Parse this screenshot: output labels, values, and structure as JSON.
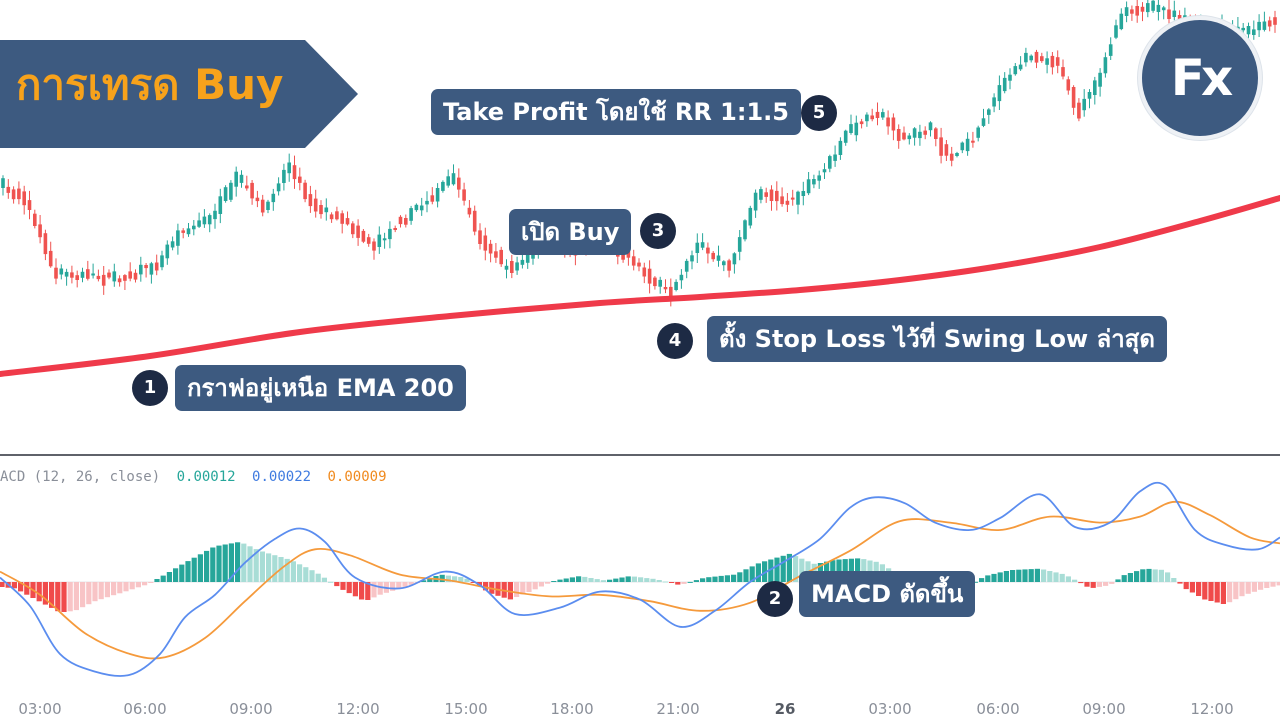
{
  "banner": {
    "title": "การเทรด Buy"
  },
  "logo": {
    "text": "Fx"
  },
  "annotations": [
    {
      "step": "1",
      "text": "กราฟอยู่เหนือ EMA 200"
    },
    {
      "step": "2",
      "text": "MACD ตัดขึ้น"
    },
    {
      "step": "3",
      "text": "เปิด Buy"
    },
    {
      "step": "4",
      "text": "ตั้ง Stop Loss ไว้ที่ Swing Low ล่าสุด"
    },
    {
      "step": "5",
      "text": "Take Profit โดยใช้ RR 1:1.5"
    }
  ],
  "macd_legend": {
    "label": "ACD (12, 26, close)",
    "macd": "0.00012",
    "signal": "0.00022",
    "histogram": "0.00009"
  },
  "colors": {
    "banner_bg": "#3d5a80",
    "banner_text": "#f7a21b",
    "label_bg": "#3d5a80",
    "badge_bg": "#1d2a44",
    "candle_up": "#26a69a",
    "candle_down": "#ef5350",
    "ema": "#ef3a4a",
    "macd_line": "#5b8def",
    "signal_line": "#f59a3c",
    "hist_up_strong": "#26a69a",
    "hist_up_weak": "#a8ddd6",
    "hist_down_strong": "#f04b4b",
    "hist_down_weak": "#f8c4c6",
    "legend_teal": "#26a69a",
    "legend_blue": "#3f7be0",
    "legend_orange": "#f08a1e"
  },
  "chart_data": {
    "type": "candlestick",
    "x_ticks": [
      "03:00",
      "06:00",
      "09:00",
      "12:00",
      "15:00",
      "18:00",
      "21:00",
      "26",
      "03:00",
      "06:00",
      "09:00",
      "12:00"
    ],
    "x_ticks_bold": [
      "26"
    ],
    "price_path": [
      {
        "t": 0,
        "p": 182
      },
      {
        "t": 30,
        "p": 205
      },
      {
        "t": 55,
        "p": 272
      },
      {
        "t": 100,
        "p": 278
      },
      {
        "t": 130,
        "p": 278
      },
      {
        "t": 160,
        "p": 262
      },
      {
        "t": 180,
        "p": 232
      },
      {
        "t": 210,
        "p": 220
      },
      {
        "t": 240,
        "p": 175
      },
      {
        "t": 265,
        "p": 212
      },
      {
        "t": 290,
        "p": 165
      },
      {
        "t": 315,
        "p": 205
      },
      {
        "t": 350,
        "p": 225
      },
      {
        "t": 375,
        "p": 245
      },
      {
        "t": 410,
        "p": 215
      },
      {
        "t": 440,
        "p": 192
      },
      {
        "t": 455,
        "p": 175
      },
      {
        "t": 480,
        "p": 235
      },
      {
        "t": 510,
        "p": 270
      },
      {
        "t": 545,
        "p": 245
      },
      {
        "t": 575,
        "p": 250
      },
      {
        "t": 610,
        "p": 240
      },
      {
        "t": 640,
        "p": 268
      },
      {
        "t": 672,
        "p": 296
      },
      {
        "t": 700,
        "p": 245
      },
      {
        "t": 730,
        "p": 268
      },
      {
        "t": 760,
        "p": 192
      },
      {
        "t": 790,
        "p": 202
      },
      {
        "t": 820,
        "p": 178
      },
      {
        "t": 850,
        "p": 132
      },
      {
        "t": 880,
        "p": 112
      },
      {
        "t": 905,
        "p": 140
      },
      {
        "t": 930,
        "p": 128
      },
      {
        "t": 950,
        "p": 158
      },
      {
        "t": 975,
        "p": 138
      },
      {
        "t": 1000,
        "p": 90
      },
      {
        "t": 1030,
        "p": 55
      },
      {
        "t": 1060,
        "p": 62
      },
      {
        "t": 1080,
        "p": 112
      },
      {
        "t": 1100,
        "p": 78
      },
      {
        "t": 1125,
        "p": 10
      },
      {
        "t": 1160,
        "p": 8
      },
      {
        "t": 1190,
        "p": 20
      },
      {
        "t": 1220,
        "p": 30
      },
      {
        "t": 1250,
        "p": 32
      },
      {
        "t": 1280,
        "p": 18
      }
    ],
    "ema200": [
      {
        "t": 0,
        "p": 374
      },
      {
        "t": 150,
        "p": 356
      },
      {
        "t": 300,
        "p": 332
      },
      {
        "t": 450,
        "p": 316
      },
      {
        "t": 600,
        "p": 303
      },
      {
        "t": 700,
        "p": 297
      },
      {
        "t": 800,
        "p": 290
      },
      {
        "t": 900,
        "p": 280
      },
      {
        "t": 1000,
        "p": 266
      },
      {
        "t": 1100,
        "p": 247
      },
      {
        "t": 1200,
        "p": 221
      },
      {
        "t": 1280,
        "p": 198
      }
    ],
    "macd_line": [
      {
        "t": 0,
        "v": 0.3
      },
      {
        "t": 30,
        "v": -1.5
      },
      {
        "t": 60,
        "v": -4.5
      },
      {
        "t": 95,
        "v": -5.6
      },
      {
        "t": 130,
        "v": -5.8
      },
      {
        "t": 160,
        "v": -4.5
      },
      {
        "t": 185,
        "v": -2.2
      },
      {
        "t": 215,
        "v": -0.8
      },
      {
        "t": 245,
        "v": 1.3
      },
      {
        "t": 275,
        "v": 2.9
      },
      {
        "t": 300,
        "v": 3.6
      },
      {
        "t": 325,
        "v": 2.7
      },
      {
        "t": 355,
        "v": 0.3
      },
      {
        "t": 400,
        "v": -0.4
      },
      {
        "t": 445,
        "v": 0.7
      },
      {
        "t": 480,
        "v": -0.2
      },
      {
        "t": 515,
        "v": -2.0
      },
      {
        "t": 560,
        "v": -1.6
      },
      {
        "t": 600,
        "v": -0.6
      },
      {
        "t": 640,
        "v": -1.1
      },
      {
        "t": 680,
        "v": -2.8
      },
      {
        "t": 715,
        "v": -1.8
      },
      {
        "t": 750,
        "v": 0.0
      },
      {
        "t": 785,
        "v": 1.4
      },
      {
        "t": 820,
        "v": 2.9
      },
      {
        "t": 850,
        "v": 5.0
      },
      {
        "t": 875,
        "v": 5.7
      },
      {
        "t": 905,
        "v": 5.3
      },
      {
        "t": 935,
        "v": 4.0
      },
      {
        "t": 970,
        "v": 3.5
      },
      {
        "t": 1000,
        "v": 4.3
      },
      {
        "t": 1040,
        "v": 5.9
      },
      {
        "t": 1075,
        "v": 3.7
      },
      {
        "t": 1110,
        "v": 4.0
      },
      {
        "t": 1140,
        "v": 6.1
      },
      {
        "t": 1165,
        "v": 6.5
      },
      {
        "t": 1195,
        "v": 3.5
      },
      {
        "t": 1225,
        "v": 2.5
      },
      {
        "t": 1258,
        "v": 2.2
      },
      {
        "t": 1280,
        "v": 3.0
      }
    ],
    "signal_line": [
      {
        "t": 0,
        "v": 0.7
      },
      {
        "t": 40,
        "v": -0.8
      },
      {
        "t": 85,
        "v": -3.2
      },
      {
        "t": 130,
        "v": -4.5
      },
      {
        "t": 165,
        "v": -4.7
      },
      {
        "t": 205,
        "v": -3.5
      },
      {
        "t": 245,
        "v": -1.2
      },
      {
        "t": 285,
        "v": 1.1
      },
      {
        "t": 315,
        "v": 2.2
      },
      {
        "t": 350,
        "v": 1.8
      },
      {
        "t": 400,
        "v": 0.5
      },
      {
        "t": 450,
        "v": 0.1
      },
      {
        "t": 500,
        "v": -0.5
      },
      {
        "t": 550,
        "v": -0.9
      },
      {
        "t": 600,
        "v": -0.8
      },
      {
        "t": 650,
        "v": -1.2
      },
      {
        "t": 700,
        "v": -1.8
      },
      {
        "t": 750,
        "v": -1.3
      },
      {
        "t": 800,
        "v": 0.4
      },
      {
        "t": 850,
        "v": 2.1
      },
      {
        "t": 900,
        "v": 4.1
      },
      {
        "t": 950,
        "v": 4.0
      },
      {
        "t": 1000,
        "v": 3.5
      },
      {
        "t": 1050,
        "v": 4.4
      },
      {
        "t": 1100,
        "v": 4.0
      },
      {
        "t": 1140,
        "v": 4.4
      },
      {
        "t": 1175,
        "v": 5.4
      },
      {
        "t": 1210,
        "v": 4.5
      },
      {
        "t": 1250,
        "v": 3.0
      },
      {
        "t": 1280,
        "v": 2.6
      }
    ],
    "histogram": [
      {
        "t": 0,
        "v": -0.3
      },
      {
        "t": 15,
        "v": -0.4
      },
      {
        "t": 30,
        "v": -0.9
      },
      {
        "t": 45,
        "v": -1.4
      },
      {
        "t": 60,
        "v": -1.9
      },
      {
        "t": 75,
        "v": -1.8
      },
      {
        "t": 95,
        "v": -1.2
      },
      {
        "t": 120,
        "v": -0.7
      },
      {
        "t": 145,
        "v": -0.2
      },
      {
        "t": 160,
        "v": 0.3
      },
      {
        "t": 185,
        "v": 1.3
      },
      {
        "t": 215,
        "v": 2.4
      },
      {
        "t": 240,
        "v": 2.7
      },
      {
        "t": 260,
        "v": 2.1
      },
      {
        "t": 290,
        "v": 1.5
      },
      {
        "t": 315,
        "v": 0.7
      },
      {
        "t": 340,
        "v": -0.4
      },
      {
        "t": 365,
        "v": -1.2
      },
      {
        "t": 380,
        "v": -0.8
      },
      {
        "t": 410,
        "v": -0.2
      },
      {
        "t": 440,
        "v": 0.5
      },
      {
        "t": 465,
        "v": 0.3
      },
      {
        "t": 490,
        "v": -0.7
      },
      {
        "t": 510,
        "v": -1.1
      },
      {
        "t": 530,
        "v": -0.6
      },
      {
        "t": 555,
        "v": 0.1
      },
      {
        "t": 580,
        "v": 0.4
      },
      {
        "t": 605,
        "v": 0.1
      },
      {
        "t": 630,
        "v": 0.4
      },
      {
        "t": 655,
        "v": 0.2
      },
      {
        "t": 680,
        "v": -0.2
      },
      {
        "t": 705,
        "v": 0.3
      },
      {
        "t": 735,
        "v": 0.5
      },
      {
        "t": 760,
        "v": 1.3
      },
      {
        "t": 790,
        "v": 1.9
      },
      {
        "t": 815,
        "v": 1.2
      },
      {
        "t": 835,
        "v": 1.5
      },
      {
        "t": 860,
        "v": 1.6
      },
      {
        "t": 880,
        "v": 1.3
      },
      {
        "t": 905,
        "v": 0.2
      },
      {
        "t": 930,
        "v": -0.2
      },
      {
        "t": 960,
        "v": -0.6
      },
      {
        "t": 985,
        "v": 0.4
      },
      {
        "t": 1010,
        "v": 0.8
      },
      {
        "t": 1040,
        "v": 0.9
      },
      {
        "t": 1065,
        "v": 0.5
      },
      {
        "t": 1090,
        "v": -0.4
      },
      {
        "t": 1110,
        "v": -0.2
      },
      {
        "t": 1125,
        "v": 0.5
      },
      {
        "t": 1145,
        "v": 0.9
      },
      {
        "t": 1165,
        "v": 0.8
      },
      {
        "t": 1185,
        "v": -0.4
      },
      {
        "t": 1205,
        "v": -1.1
      },
      {
        "t": 1225,
        "v": -1.4
      },
      {
        "t": 1245,
        "v": -0.8
      },
      {
        "t": 1265,
        "v": -0.4
      },
      {
        "t": 1280,
        "v": -0.2
      }
    ],
    "macd_ylim": [
      -6.5,
      7.0
    ],
    "legend_placement": "top-left of lower pane",
    "grid": false
  }
}
